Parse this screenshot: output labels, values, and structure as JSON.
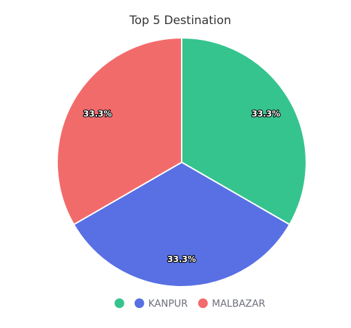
{
  "chart_data": {
    "type": "pie",
    "title": "Top 5 Destination",
    "categories": [
      "",
      "KANPUR",
      "MALBAZAR"
    ],
    "values": [
      33.3,
      33.3,
      33.3
    ],
    "data_labels": [
      "33.3%",
      "33.3%",
      "33.3%"
    ],
    "colors": [
      "#36c48e",
      "#5870e3",
      "#f26b6b"
    ],
    "legend": {
      "position": "bottom",
      "entries": [
        "",
        "KANPUR",
        "MALBAZAR"
      ]
    }
  }
}
